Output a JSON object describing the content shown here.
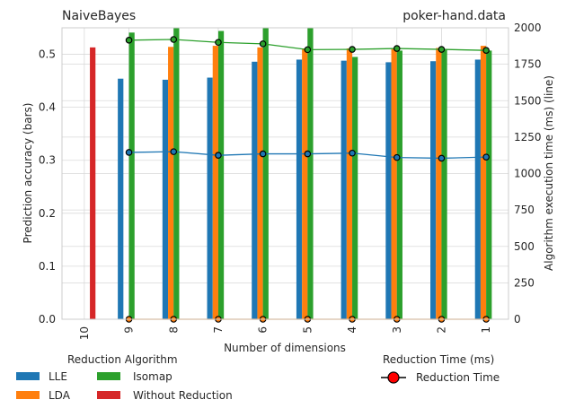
{
  "chart_data": {
    "type": "bar",
    "title_left": "NaiveBayes",
    "title_right": "poker-hand.data",
    "xlabel": "Number of dimensions",
    "ylabel_left": "Prediction accuracy (bars)",
    "ylabel_right": "Algorithm execution time (ms) (line)",
    "categories": [
      "10",
      "9",
      "8",
      "7",
      "6",
      "5",
      "4",
      "3",
      "2",
      "1"
    ],
    "ylim_left": [
      0,
      0.55
    ],
    "yticks_left": [
      "0.0",
      "0.1",
      "0.2",
      "0.3",
      "0.4",
      "0.5"
    ],
    "ylim_right": [
      0,
      2000
    ],
    "yticks_right": [
      "0",
      "250",
      "500",
      "750",
      "1000",
      "1250",
      "1500",
      "1750",
      "2000"
    ],
    "grid": true,
    "bar_series": [
      {
        "name": "LLE",
        "color": "#1f77b4",
        "values": [
          null,
          0.454,
          0.452,
          0.456,
          0.486,
          0.49,
          0.488,
          0.485,
          0.487,
          0.49
        ]
      },
      {
        "name": "LDA",
        "color": "#ff7f0e",
        "values": [
          null,
          null,
          0.514,
          0.516,
          0.513,
          0.511,
          0.511,
          0.511,
          0.512,
          0.516
        ]
      },
      {
        "name": "Isomap",
        "color": "#2ca02c",
        "values": [
          null,
          0.541,
          0.55,
          0.544,
          0.55,
          0.55,
          0.495,
          0.507,
          0.509,
          0.507
        ]
      },
      {
        "name": "Without Reduction",
        "color": "#d62728",
        "values": [
          0.513,
          null,
          null,
          null,
          null,
          null,
          null,
          null,
          null,
          null
        ]
      }
    ],
    "line_series": [
      {
        "name": "LLE",
        "color": "#1f77b4",
        "values": [
          null,
          1145,
          1150,
          1125,
          1135,
          1135,
          1140,
          1110,
          1105,
          1113
        ]
      },
      {
        "name": "LDA",
        "color": "#ff7f0e",
        "values": [
          null,
          0,
          0,
          0,
          0,
          0,
          0,
          0,
          0,
          0
        ]
      },
      {
        "name": "Isomap",
        "color": "#2ca02c",
        "values": [
          null,
          1915,
          1920,
          1900,
          1890,
          1850,
          1852,
          1858,
          1852,
          1845
        ]
      }
    ],
    "legend_left": {
      "title": "Reduction Algorithm",
      "entries": [
        "LLE",
        "LDA",
        "Isomap",
        "Without Reduction"
      ]
    },
    "legend_right": {
      "title": "Reduction Time (ms)",
      "entry": "Reduction Time",
      "marker_color": "#ff0000"
    }
  }
}
